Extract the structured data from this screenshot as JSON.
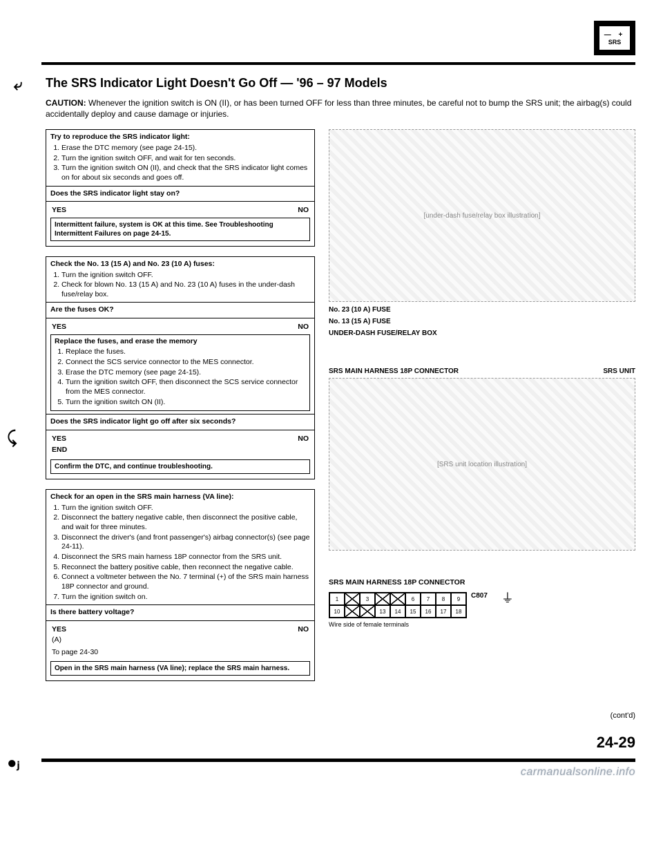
{
  "header": {
    "srs_label": "SRS",
    "title": "The SRS Indicator Light Doesn't Go Off — '96 – 97 Models",
    "caution_label": "CAUTION:",
    "caution_text": "Whenever the ignition switch is ON (II), or has been turned OFF for less than three minutes, be careful not to bump the SRS unit; the airbag(s) could accidentally deploy and cause damage or injuries."
  },
  "flow": {
    "box1": {
      "title": "Try to reproduce the SRS indicator light:",
      "steps": [
        "Erase the DTC memory (see page 24-15).",
        "Turn the ignition switch OFF, and wait for ten seconds.",
        "Turn the ignition switch ON (II), and check that the SRS indicator light comes on for about six seconds and goes off."
      ],
      "question": "Does the SRS indicator light stay on?",
      "yes": "YES",
      "no": "NO",
      "result": "Intermittent failure, system is OK at this time. See Troubleshooting Intermittent Failures on page 24-15."
    },
    "box2": {
      "title": "Check the No. 13 (15 A) and No. 23 (10 A) fuses:",
      "steps": [
        "Turn the ignition switch OFF.",
        "Check for blown No. 13 (15 A) and No. 23 (10 A) fuses in the under-dash fuse/relay box."
      ],
      "question": "Are the fuses OK?",
      "yes": "YES",
      "no": "NO",
      "sub_title": "Replace the fuses, and erase the memory",
      "sub_steps": [
        "Replace the fuses.",
        "Connect the SCS service connector to the MES connector.",
        "Erase the DTC memory (see page 24-15).",
        "Turn the ignition switch OFF, then disconnect the SCS service connector from the MES connector.",
        "Turn the ignition switch ON (II)."
      ],
      "sub_question": "Does the SRS indicator light go off after six seconds?",
      "sub_yes": "YES",
      "sub_no": "NO",
      "end": "END",
      "confirm": "Confirm the DTC, and continue troubleshooting."
    },
    "box3": {
      "title": "Check for an open in the SRS main harness (VA line):",
      "steps": [
        "Turn the ignition switch OFF.",
        "Disconnect the battery negative cable, then disconnect the positive cable, and wait for three minutes.",
        "Disconnect the driver's (and front passenger's) airbag connector(s) (see page 24-11).",
        "Disconnect the SRS main harness 18P connector from the SRS unit.",
        "Reconnect the battery positive cable, then reconnect the negative cable.",
        "Connect a voltmeter between the No. 7 terminal (+) of the SRS main harness 18P connector and ground.",
        "Turn the ignition switch on."
      ],
      "question": "Is there battery voltage?",
      "yes": "YES",
      "no": "NO",
      "yes_note": "(A)",
      "yes_goto": "To page 24-30",
      "result": "Open in the SRS main harness (VA line); replace the SRS main harness."
    }
  },
  "figures": {
    "fig1": {
      "labels": [
        "No. 23 (10 A) FUSE",
        "No. 13 (15 A) FUSE",
        "UNDER-DASH FUSE/RELAY BOX"
      ],
      "placeholder": "[under-dash fuse/relay box illustration]"
    },
    "fig2": {
      "labels": [
        "SRS MAIN HARNESS 18P CONNECTOR",
        "SRS UNIT"
      ],
      "placeholder": "[SRS unit location illustration]"
    },
    "connector": {
      "title": "SRS MAIN HARNESS 18P CONNECTOR",
      "label": "C807",
      "row1": [
        "1",
        "",
        "3",
        "",
        "",
        "6",
        "7",
        "8",
        "9"
      ],
      "row1_x": [
        false,
        true,
        false,
        true,
        true,
        false,
        false,
        false,
        false
      ],
      "row2": [
        "10",
        "",
        "",
        "13",
        "14",
        "15",
        "16",
        "17",
        "18"
      ],
      "row2_x": [
        false,
        true,
        true,
        false,
        false,
        false,
        false,
        false,
        false
      ],
      "side_note": "Wire side of female terminals"
    }
  },
  "footer": {
    "contd": "(cont'd)",
    "page": "24-29",
    "watermark": "carmanualsonline.info"
  },
  "colors": {
    "text": "#000000",
    "bg": "#ffffff",
    "watermark": "#9aa4b0"
  }
}
